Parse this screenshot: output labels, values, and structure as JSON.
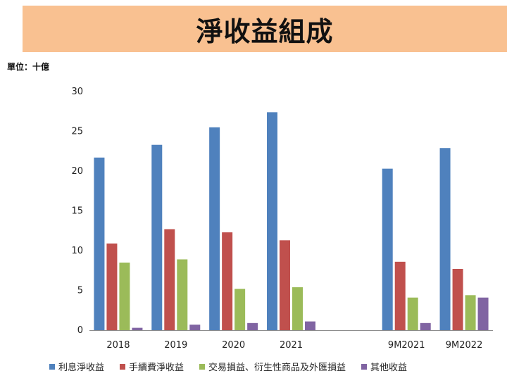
{
  "title": "淨收益組成",
  "unit_label": "單位：十億",
  "chart_data": {
    "type": "bar",
    "categories": [
      "2018",
      "2019",
      "2020",
      "2021",
      "",
      "9M2021",
      "9M2022"
    ],
    "series": [
      {
        "name": "利息淨收益",
        "color": "#4f81bd",
        "values": [
          21.7,
          23.3,
          25.5,
          27.4,
          null,
          20.3,
          22.9
        ]
      },
      {
        "name": "手續費淨收益",
        "color": "#c0504d",
        "values": [
          10.9,
          12.7,
          12.3,
          11.3,
          null,
          8.6,
          7.7
        ]
      },
      {
        "name": "交易損益、衍生性商品及外匯損益",
        "color": "#9bbb59",
        "values": [
          8.5,
          8.9,
          5.2,
          5.4,
          null,
          4.1,
          4.4
        ]
      },
      {
        "name": "其他收益",
        "color": "#8064a2",
        "values": [
          0.3,
          0.7,
          0.9,
          1.1,
          null,
          0.9,
          4.1
        ]
      }
    ],
    "ylim": [
      0,
      30
    ],
    "yticks": [
      0,
      5,
      10,
      15,
      20,
      25,
      30
    ],
    "grid": false,
    "legend_position": "bottom"
  }
}
